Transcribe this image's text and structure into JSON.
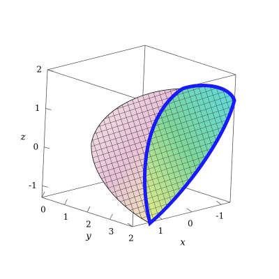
{
  "chart_data": {
    "type": "surface3d",
    "xlabel": "x",
    "ylabel": "y",
    "zlabel": "z",
    "xlim": [
      2,
      -1.3
    ],
    "ylim": [
      0,
      4
    ],
    "zlim": [
      -1.3,
      2
    ],
    "xticks": [
      2,
      1,
      0,
      -1
    ],
    "yticks": [
      0,
      1,
      2,
      3
    ],
    "zticks": [
      -1,
      0,
      1,
      2
    ],
    "boundary_color": "#1a1aff"
  }
}
